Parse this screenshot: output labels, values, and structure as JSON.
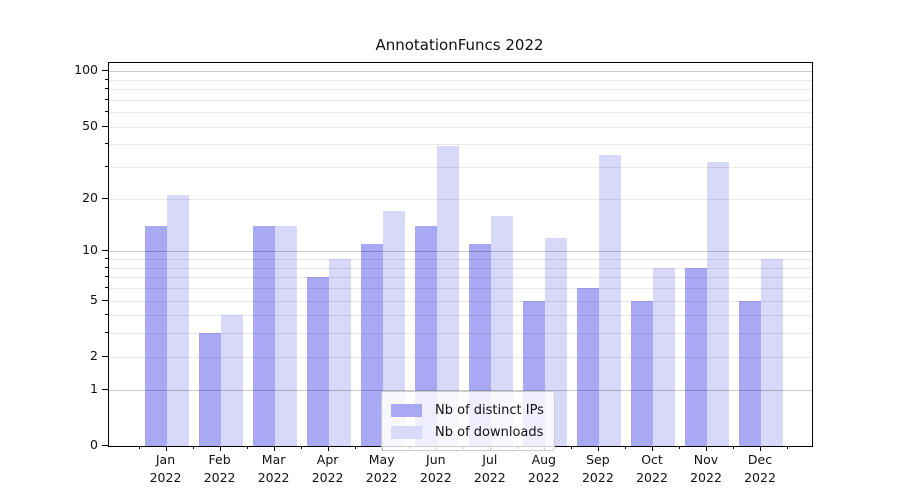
{
  "title": "AnnotationFuncs 2022",
  "chart_data": {
    "type": "bar",
    "title": "AnnotationFuncs 2022",
    "yscale": "log1p",
    "grid": true,
    "legend_position": "lower center",
    "ylim": [
      0,
      110
    ],
    "y_tick_values": [
      0,
      1,
      2,
      5,
      10,
      20,
      50,
      100
    ],
    "y_tick_labels": [
      "0",
      "1",
      "2",
      "5",
      "10",
      "20",
      "50",
      "100"
    ],
    "y_major_decades": [
      1,
      10,
      100
    ],
    "year": "2022",
    "categories": [
      "Jan",
      "Feb",
      "Mar",
      "Apr",
      "May",
      "Jun",
      "Jul",
      "Aug",
      "Sep",
      "Oct",
      "Nov",
      "Dec"
    ],
    "series": [
      {
        "name": "Nb of distinct IPs",
        "color": "#a8a8f5",
        "values": [
          14,
          3,
          14,
          7,
          11,
          14,
          11,
          5,
          6,
          5,
          8,
          5
        ]
      },
      {
        "name": "Nb of downloads",
        "color": "#d8d8f8",
        "values": [
          21,
          4,
          14,
          9,
          17,
          39,
          16,
          12,
          35,
          8,
          32,
          9
        ]
      }
    ]
  }
}
